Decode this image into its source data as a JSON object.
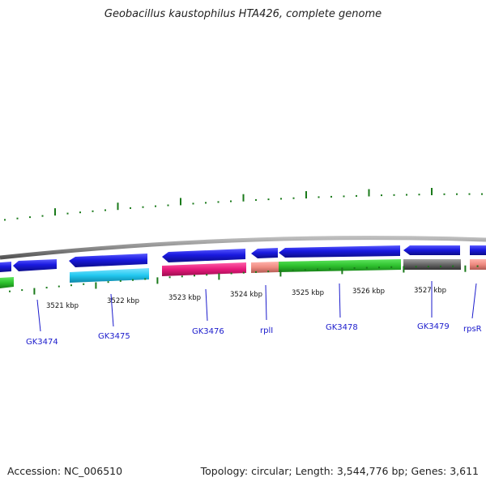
{
  "title": "Geobacillus kaustophilus HTA426, complete genome",
  "footer": {
    "accession": "Accession: NC_006510",
    "summary": "Topology: circular; Length: 3,544,776 bp; Genes: 3,611"
  },
  "colors": {
    "blue_gene": "#1a1ae0",
    "backbone": "#8c8c8c",
    "tick": "#1a7a1a",
    "label": "#1a1acc"
  },
  "kbp_labels": [
    "3521 kbp",
    "3522 kbp",
    "3523 kbp",
    "3524 kbp",
    "3525 kbp",
    "3526 kbp",
    "3527 kbp"
  ],
  "gene_labels": [
    "GK3474",
    "GK3475",
    "GK3476",
    "rplI",
    "GK3478",
    "GK3479",
    "rpsR"
  ],
  "strip_colors": {
    "green": "#2ec12e",
    "cyan": "#22c8f0",
    "magenta": "#e6197a",
    "salmon": "#ee8a80",
    "gray": "#666666"
  }
}
